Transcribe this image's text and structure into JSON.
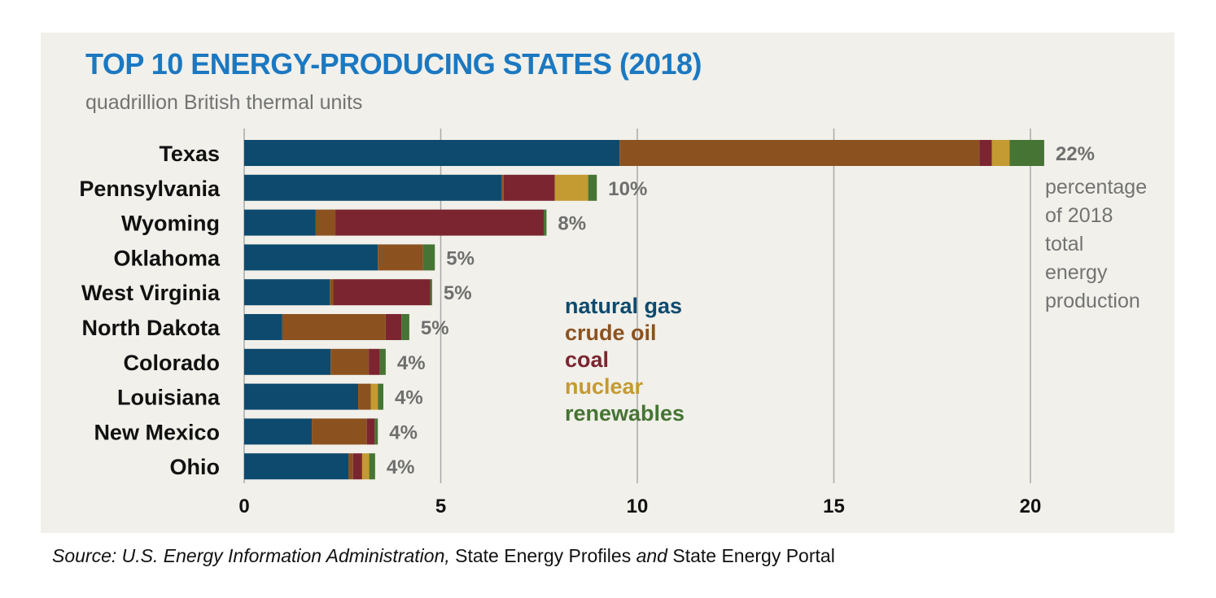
{
  "chart_data": {
    "type": "bar",
    "orientation": "horizontal",
    "stacked": true,
    "title": "TOP 10 ENERGY-PRODUCING STATES (2018)",
    "subtitle": "quadrillion British thermal units",
    "categories": [
      "Texas",
      "Pennsylvania",
      "Wyoming",
      "Oklahoma",
      "West Virginia",
      "North Dakota",
      "Colorado",
      "Louisiana",
      "New Mexico",
      "Ohio"
    ],
    "series": [
      {
        "name": "natural gas",
        "color": "#0d4a6e",
        "values": [
          9.55,
          6.55,
          1.82,
          3.4,
          2.18,
          0.97,
          2.2,
          2.9,
          1.72,
          2.65
        ]
      },
      {
        "name": "crude oil",
        "color": "#8b5220",
        "values": [
          9.15,
          0.05,
          0.5,
          1.15,
          0.08,
          2.63,
          0.97,
          0.32,
          1.4,
          0.12
        ]
      },
      {
        "name": "coal",
        "color": "#7b2530",
        "values": [
          0.32,
          1.3,
          5.3,
          0.0,
          2.47,
          0.4,
          0.28,
          0.0,
          0.2,
          0.23
        ]
      },
      {
        "name": "nuclear",
        "color": "#c49a32",
        "values": [
          0.45,
          0.85,
          0.0,
          0.0,
          0.0,
          0.0,
          0.0,
          0.18,
          0.0,
          0.18
        ]
      },
      {
        "name": "renewables",
        "color": "#467434",
        "values": [
          0.88,
          0.22,
          0.07,
          0.3,
          0.05,
          0.2,
          0.15,
          0.14,
          0.08,
          0.15
        ]
      }
    ],
    "percent_labels": [
      "22%",
      "10%",
      "8%",
      "5%",
      "5%",
      "5%",
      "4%",
      "4%",
      "4%",
      "4%"
    ],
    "percent_note": [
      "percentage",
      "of 2018",
      "total",
      "energy",
      "production"
    ],
    "x_ticks": [
      0,
      5,
      10,
      15,
      20
    ],
    "xlim": [
      0,
      20.5
    ],
    "grid": true,
    "legend_position": "center"
  },
  "footnote": {
    "source_prefix": "Source: U.S. Energy Information Administration,",
    "title1": " State Energy Profiles",
    "and": " and",
    "title2": " State Energy Portal"
  }
}
